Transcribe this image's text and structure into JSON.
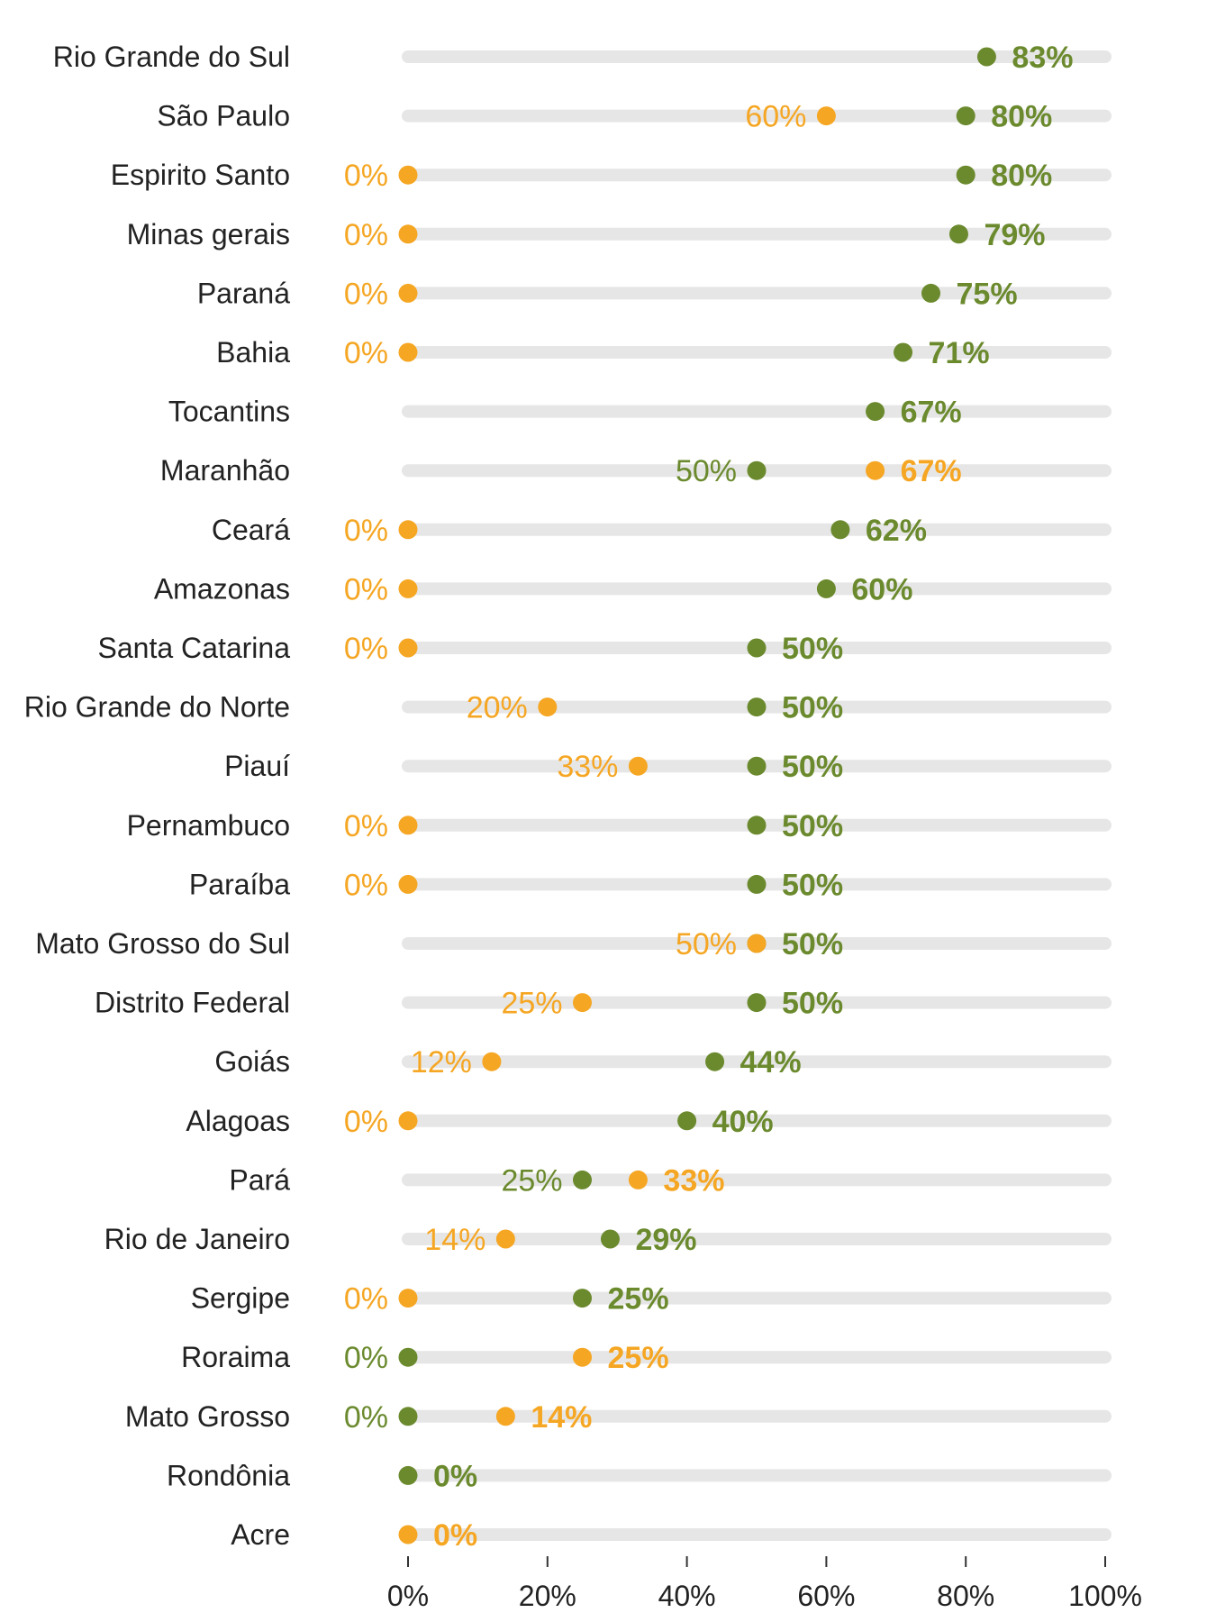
{
  "chart_data": {
    "type": "dot",
    "title": "",
    "xlabel": "",
    "ylabel": "",
    "xlim": [
      0,
      100
    ],
    "x_ticks": [
      "0%",
      "20%",
      "40%",
      "60%",
      "80%",
      "100%"
    ],
    "x_tick_values": [
      0,
      20,
      40,
      60,
      80,
      100
    ],
    "colors": {
      "green": "#6b8a2e",
      "orange": "#f5a623",
      "track": "#e6e6e6",
      "text": "#222222"
    },
    "rows": [
      {
        "state": "Rio Grande do Sul",
        "green": 83,
        "orange": null
      },
      {
        "state": "São Paulo",
        "green": 80,
        "orange": 60
      },
      {
        "state": "Espirito Santo",
        "green": 80,
        "orange": 0
      },
      {
        "state": "Minas gerais",
        "green": 79,
        "orange": 0
      },
      {
        "state": "Paraná",
        "green": 75,
        "orange": 0
      },
      {
        "state": "Bahia",
        "green": 71,
        "orange": 0
      },
      {
        "state": "Tocantins",
        "green": 67,
        "orange": null
      },
      {
        "state": "Maranhão",
        "green": 50,
        "orange": 67
      },
      {
        "state": "Ceará",
        "green": 62,
        "orange": 0
      },
      {
        "state": "Amazonas",
        "green": 60,
        "orange": 0
      },
      {
        "state": "Santa Catarina",
        "green": 50,
        "orange": 0
      },
      {
        "state": "Rio Grande do Norte",
        "green": 50,
        "orange": 20
      },
      {
        "state": "Piauí",
        "green": 50,
        "orange": 33
      },
      {
        "state": "Pernambuco",
        "green": 50,
        "orange": 0
      },
      {
        "state": "Paraíba",
        "green": 50,
        "orange": 0
      },
      {
        "state": "Mato Grosso do Sul",
        "green": 50,
        "orange": 50
      },
      {
        "state": "Distrito Federal",
        "green": 50,
        "orange": 25
      },
      {
        "state": "Goiás",
        "green": 44,
        "orange": 12
      },
      {
        "state": "Alagoas",
        "green": 40,
        "orange": 0
      },
      {
        "state": "Pará",
        "green": 25,
        "orange": 33
      },
      {
        "state": "Rio de Janeiro",
        "green": 29,
        "orange": 14
      },
      {
        "state": "Sergipe",
        "green": 25,
        "orange": 0
      },
      {
        "state": "Roraima",
        "green": 0,
        "orange": 25
      },
      {
        "state": "Mato Grosso",
        "green": 0,
        "orange": 14
      },
      {
        "state": "Rondônia",
        "green": 0,
        "orange": null
      },
      {
        "state": "Acre",
        "green": null,
        "orange": 0
      }
    ]
  }
}
